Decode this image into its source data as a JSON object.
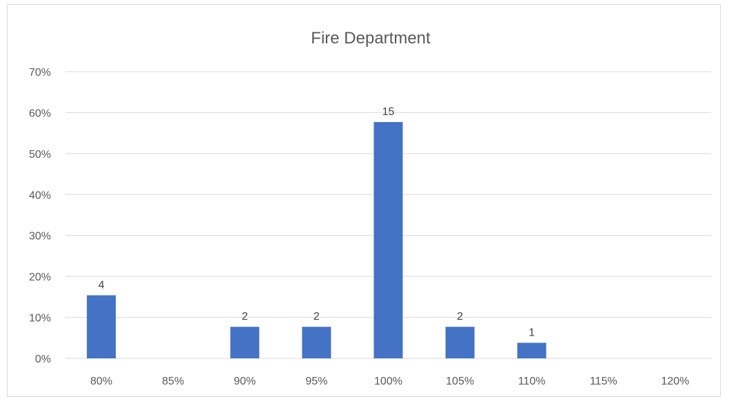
{
  "chart_data": {
    "type": "bar",
    "title": "Fire Department",
    "xlabel": "",
    "ylabel": "",
    "categories": [
      "80%",
      "85%",
      "90%",
      "95%",
      "100%",
      "105%",
      "110%",
      "115%",
      "120%"
    ],
    "values": [
      15.4,
      0,
      7.7,
      7.7,
      57.7,
      7.7,
      3.8,
      0,
      0
    ],
    "data_labels": [
      "4",
      "",
      "2",
      "2",
      "15",
      "2",
      "1",
      "",
      ""
    ],
    "ylim": [
      0,
      70
    ],
    "yticks": [
      0,
      10,
      20,
      30,
      40,
      50,
      60,
      70
    ],
    "ytick_labels": [
      "0%",
      "10%",
      "20%",
      "30%",
      "40%",
      "50%",
      "60%",
      "70%"
    ],
    "grid": true,
    "legend": "none",
    "bar_color": "#4472c4"
  }
}
